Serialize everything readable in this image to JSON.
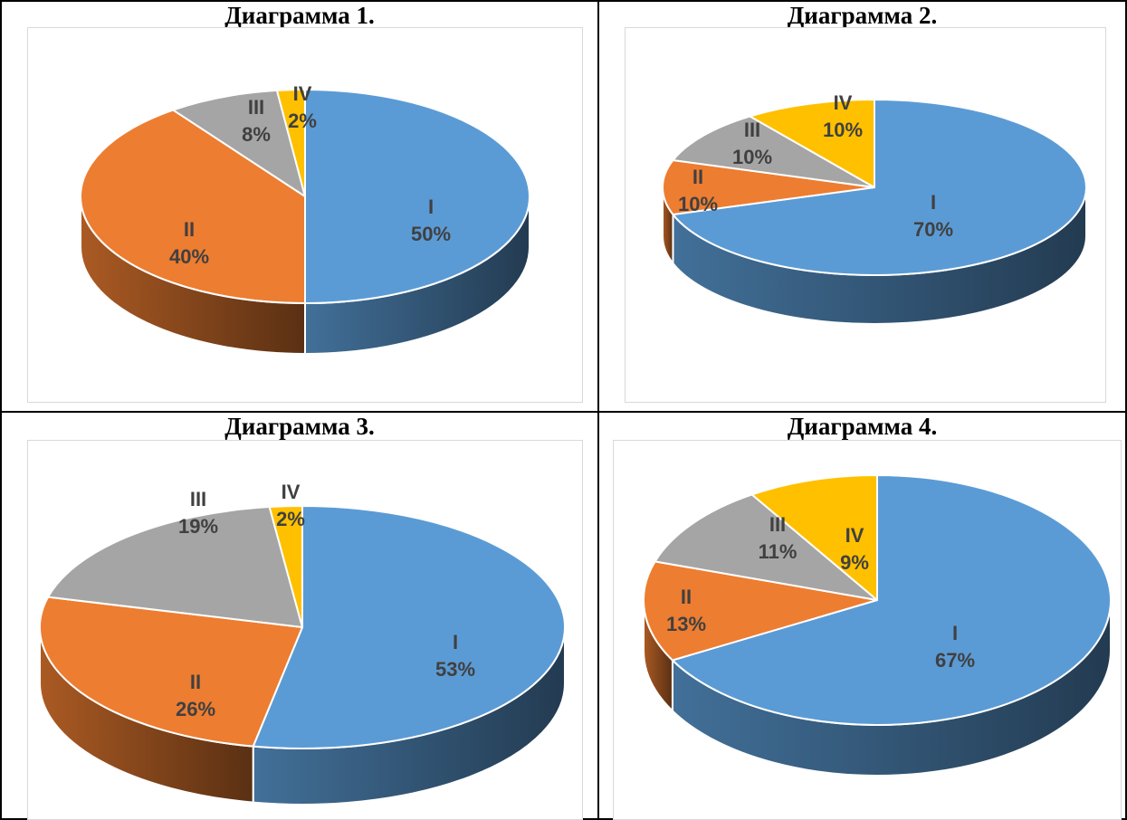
{
  "colors": {
    "I": "#5b9bd5",
    "II": "#ed7d31",
    "III": "#a5a5a5",
    "IV": "#ffc000",
    "grid_border": "#000000",
    "frame_border": "#d9d9d9",
    "label": "#404040"
  },
  "chart_data": [
    {
      "type": "pie",
      "title": "Диаграмма 1.",
      "categories": [
        "I",
        "II",
        "III",
        "IV"
      ],
      "values": [
        50,
        40,
        8,
        2
      ],
      "value_labels": [
        "50%",
        "40%",
        "8%",
        "2%"
      ],
      "style": "3d",
      "legend": "none"
    },
    {
      "type": "pie",
      "title": "Диаграмма 2.",
      "categories": [
        "I",
        "II",
        "III",
        "IV"
      ],
      "values": [
        70,
        10,
        10,
        10
      ],
      "value_labels": [
        "70%",
        "10%",
        "10%",
        "10%"
      ],
      "style": "3d",
      "legend": "none"
    },
    {
      "type": "pie",
      "title": "Диаграмма 3.",
      "categories": [
        "I",
        "II",
        "III",
        "IV"
      ],
      "values": [
        53,
        26,
        19,
        2
      ],
      "value_labels": [
        "53%",
        "26%",
        "19%",
        "2%"
      ],
      "style": "3d",
      "legend": "none"
    },
    {
      "type": "pie",
      "title": "Диаграмма 4.",
      "categories": [
        "I",
        "II",
        "III",
        "IV"
      ],
      "values": [
        67,
        13,
        11,
        9
      ],
      "value_labels": [
        "67%",
        "13%",
        "11%",
        "9%"
      ],
      "style": "3d",
      "legend": "none"
    }
  ]
}
